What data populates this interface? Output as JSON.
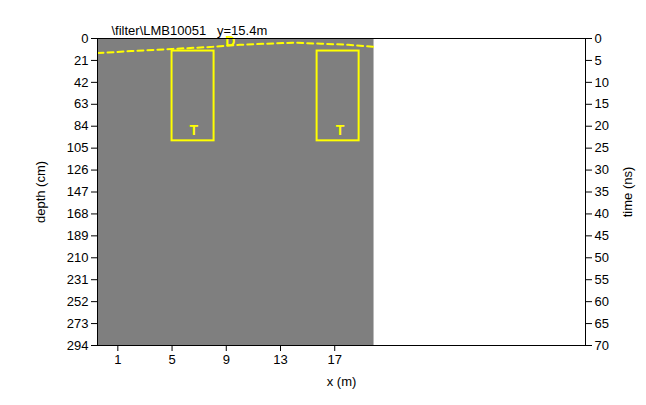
{
  "chart_data": {
    "type": "radargram",
    "title": "\\filter\\LMB10051   y=15.4m",
    "xlabel": "x (m)",
    "ylabel": "depth (cm)",
    "y2label": "time (ns)",
    "xlim": [
      -0.5,
      35.5
    ],
    "xticks": [
      1,
      5,
      9,
      13,
      17
    ],
    "ylim": [
      0,
      294
    ],
    "yticks": [
      0,
      21,
      42,
      63,
      84,
      105,
      126,
      147,
      168,
      189,
      210,
      231,
      252,
      273,
      294
    ],
    "y2lim": [
      0,
      70
    ],
    "y2ticks": [
      0,
      5,
      10,
      15,
      20,
      25,
      30,
      35,
      40,
      45,
      50,
      55,
      60,
      65,
      70
    ],
    "radargram": {
      "x": [
        -0.5,
        19.9
      ],
      "depth": [
        0,
        294
      ],
      "color": "#7f7f7f"
    },
    "lines": [
      {
        "label": "D",
        "color": "#ffff00",
        "line_style": "dashed",
        "x": [
          -0.5,
          2,
          5,
          8,
          10,
          12,
          14,
          16,
          18,
          19.9
        ],
        "y": [
          14,
          12,
          10,
          8,
          6,
          5,
          4,
          5,
          6,
          8
        ],
        "label_at": [
          9.3,
          3
        ]
      }
    ],
    "boxes": [
      {
        "label": "T",
        "color": "#ffff00",
        "line_style": "dashed",
        "x": [
          5,
          8.1
        ],
        "y": [
          12,
          98
        ],
        "label_at": [
          6.6,
          88
        ]
      },
      {
        "label": "T",
        "color": "#ffff00",
        "line_style": "dashed",
        "x": [
          15.7,
          18.8
        ],
        "y": [
          12,
          98
        ],
        "label_at": [
          17.4,
          88
        ]
      }
    ]
  }
}
